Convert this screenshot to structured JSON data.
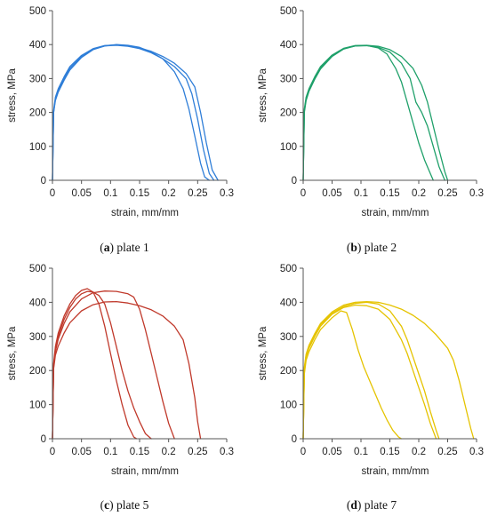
{
  "chart_data": [
    {
      "type": "line",
      "caption_letter": "a",
      "caption_text": "plate 1",
      "xlabel": "strain, mm/mm",
      "ylabel": "stress, MPa",
      "xlim": [
        0,
        0.3
      ],
      "ylim": [
        0,
        500
      ],
      "xticks": [
        "0",
        "0.05",
        "0.1",
        "0.15",
        "0.2",
        "0.25",
        "0.3"
      ],
      "yticks": [
        "0",
        "100",
        "200",
        "300",
        "400",
        "500"
      ],
      "color": "#2f7ed8",
      "series": [
        {
          "x": [
            0,
            0.002,
            0.005,
            0.01,
            0.02,
            0.03,
            0.05,
            0.07,
            0.09,
            0.11,
            0.13,
            0.15,
            0.17,
            0.19,
            0.21,
            0.225,
            0.235,
            0.245,
            0.255,
            0.262,
            0.27
          ],
          "y": [
            0,
            200,
            235,
            260,
            295,
            325,
            362,
            385,
            396,
            400,
            398,
            392,
            378,
            358,
            320,
            270,
            210,
            130,
            50,
            10,
            0
          ]
        },
        {
          "x": [
            0,
            0.002,
            0.005,
            0.01,
            0.02,
            0.03,
            0.05,
            0.07,
            0.09,
            0.11,
            0.13,
            0.15,
            0.17,
            0.19,
            0.21,
            0.23,
            0.24,
            0.25,
            0.26,
            0.27,
            0.278
          ],
          "y": [
            0,
            200,
            240,
            265,
            300,
            330,
            365,
            386,
            396,
            398,
            395,
            388,
            376,
            358,
            335,
            300,
            255,
            180,
            90,
            20,
            0
          ]
        },
        {
          "x": [
            0,
            0.002,
            0.005,
            0.01,
            0.02,
            0.03,
            0.05,
            0.07,
            0.09,
            0.11,
            0.13,
            0.15,
            0.17,
            0.19,
            0.21,
            0.23,
            0.245,
            0.255,
            0.265,
            0.275,
            0.285
          ],
          "y": [
            0,
            205,
            245,
            270,
            305,
            335,
            368,
            388,
            397,
            399,
            396,
            390,
            380,
            365,
            345,
            315,
            275,
            200,
            110,
            30,
            0
          ]
        }
      ]
    },
    {
      "type": "line",
      "caption_letter": "b",
      "caption_text": "plate 2",
      "xlabel": "strain, mm/mm",
      "ylabel": "stress, MPa",
      "xlim": [
        0,
        0.3
      ],
      "ylim": [
        0,
        500
      ],
      "xticks": [
        "0",
        "0.05",
        "0.1",
        "0.15",
        "0.2",
        "0.25",
        "0.3"
      ],
      "yticks": [
        "0",
        "100",
        "200",
        "300",
        "400",
        "500"
      ],
      "color": "#1fa06a",
      "series": [
        {
          "x": [
            0,
            0.002,
            0.005,
            0.01,
            0.02,
            0.03,
            0.05,
            0.07,
            0.09,
            0.11,
            0.13,
            0.145,
            0.16,
            0.17,
            0.18,
            0.19,
            0.2,
            0.21,
            0.22,
            0.225
          ],
          "y": [
            0,
            200,
            235,
            262,
            298,
            328,
            365,
            387,
            396,
            397,
            390,
            372,
            330,
            290,
            230,
            170,
            110,
            60,
            20,
            0
          ]
        },
        {
          "x": [
            0,
            0.002,
            0.005,
            0.01,
            0.02,
            0.03,
            0.05,
            0.07,
            0.09,
            0.11,
            0.13,
            0.15,
            0.17,
            0.185,
            0.195,
            0.205,
            0.215,
            0.225,
            0.235,
            0.245
          ],
          "y": [
            0,
            205,
            240,
            266,
            302,
            332,
            367,
            388,
            396,
            397,
            392,
            378,
            345,
            300,
            230,
            200,
            160,
            100,
            40,
            0
          ]
        },
        {
          "x": [
            0,
            0.002,
            0.005,
            0.01,
            0.02,
            0.03,
            0.05,
            0.07,
            0.09,
            0.11,
            0.13,
            0.15,
            0.17,
            0.19,
            0.205,
            0.215,
            0.225,
            0.235,
            0.245,
            0.25
          ],
          "y": [
            0,
            210,
            245,
            270,
            305,
            335,
            369,
            389,
            397,
            398,
            395,
            385,
            365,
            330,
            280,
            230,
            160,
            90,
            25,
            0
          ]
        }
      ]
    },
    {
      "type": "line",
      "caption_letter": "c",
      "caption_text": "plate 5",
      "xlabel": "strain, mm/mm",
      "ylabel": "stress, MPa",
      "xlim": [
        0,
        0.3
      ],
      "ylim": [
        0,
        500
      ],
      "xticks": [
        "0",
        "0.05",
        "0.1",
        "0.15",
        "0.2",
        "0.25",
        "0.3"
      ],
      "yticks": [
        "0",
        "100",
        "200",
        "300",
        "400",
        "500"
      ],
      "color": "#c0392b",
      "series": [
        {
          "x": [
            0,
            0.002,
            0.005,
            0.01,
            0.02,
            0.03,
            0.04,
            0.05,
            0.06,
            0.07,
            0.08,
            0.09,
            0.1,
            0.11,
            0.12,
            0.13,
            0.14,
            0.145
          ],
          "y": [
            0,
            220,
            270,
            310,
            360,
            395,
            420,
            435,
            440,
            430,
            395,
            330,
            250,
            170,
            100,
            40,
            5,
            0
          ]
        },
        {
          "x": [
            0,
            0.002,
            0.005,
            0.01,
            0.02,
            0.03,
            0.04,
            0.05,
            0.06,
            0.07,
            0.08,
            0.09,
            0.1,
            0.11,
            0.12,
            0.13,
            0.14,
            0.15,
            0.16,
            0.17
          ],
          "y": [
            0,
            215,
            262,
            300,
            350,
            385,
            410,
            425,
            432,
            430,
            420,
            395,
            340,
            270,
            200,
            140,
            90,
            50,
            15,
            0
          ]
        },
        {
          "x": [
            0,
            0.002,
            0.005,
            0.01,
            0.02,
            0.03,
            0.05,
            0.07,
            0.09,
            0.11,
            0.13,
            0.14,
            0.15,
            0.16,
            0.17,
            0.18,
            0.19,
            0.2,
            0.21
          ],
          "y": [
            0,
            210,
            255,
            292,
            338,
            372,
            410,
            428,
            433,
            432,
            425,
            415,
            380,
            320,
            250,
            180,
            110,
            45,
            0
          ]
        },
        {
          "x": [
            0,
            0.002,
            0.005,
            0.01,
            0.02,
            0.03,
            0.05,
            0.07,
            0.09,
            0.11,
            0.13,
            0.15,
            0.17,
            0.19,
            0.21,
            0.225,
            0.235,
            0.245,
            0.25,
            0.255
          ],
          "y": [
            0,
            205,
            245,
            272,
            310,
            340,
            375,
            393,
            401,
            402,
            398,
            390,
            378,
            360,
            330,
            290,
            220,
            120,
            50,
            0
          ]
        }
      ]
    },
    {
      "type": "line",
      "caption_letter": "d",
      "caption_text": "plate 7",
      "xlabel": "strain, mm/mm",
      "ylabel": "stress, MPa",
      "xlim": [
        0,
        0.3
      ],
      "ylim": [
        0,
        500
      ],
      "xticks": [
        "0",
        "0.05",
        "0.1",
        "0.15",
        "0.2",
        "0.25",
        "0.3"
      ],
      "yticks": [
        "0",
        "100",
        "200",
        "300",
        "400",
        "500"
      ],
      "color": "#e5c300",
      "series": [
        {
          "x": [
            0,
            0.002,
            0.005,
            0.01,
            0.02,
            0.03,
            0.05,
            0.065,
            0.075,
            0.085,
            0.095,
            0.105,
            0.115,
            0.125,
            0.135,
            0.145,
            0.155,
            0.165,
            0.17
          ],
          "y": [
            0,
            190,
            230,
            255,
            290,
            320,
            355,
            375,
            370,
            320,
            260,
            210,
            170,
            130,
            90,
            55,
            25,
            5,
            0
          ]
        },
        {
          "x": [
            0,
            0.002,
            0.005,
            0.01,
            0.02,
            0.03,
            0.05,
            0.07,
            0.09,
            0.11,
            0.13,
            0.15,
            0.17,
            0.18,
            0.19,
            0.2,
            0.21,
            0.22,
            0.23
          ],
          "y": [
            0,
            200,
            240,
            265,
            300,
            330,
            365,
            385,
            392,
            390,
            380,
            350,
            290,
            250,
            200,
            150,
            100,
            45,
            0
          ]
        },
        {
          "x": [
            0,
            0.002,
            0.005,
            0.01,
            0.02,
            0.03,
            0.05,
            0.07,
            0.09,
            0.11,
            0.13,
            0.15,
            0.17,
            0.18,
            0.19,
            0.2,
            0.21,
            0.22,
            0.23,
            0.235
          ],
          "y": [
            0,
            205,
            245,
            270,
            305,
            335,
            368,
            388,
            397,
            400,
            395,
            375,
            330,
            290,
            240,
            190,
            140,
            80,
            25,
            0
          ]
        },
        {
          "x": [
            0,
            0.002,
            0.005,
            0.01,
            0.02,
            0.03,
            0.05,
            0.07,
            0.09,
            0.11,
            0.13,
            0.15,
            0.17,
            0.19,
            0.21,
            0.23,
            0.25,
            0.26,
            0.27,
            0.28,
            0.29,
            0.295
          ],
          "y": [
            0,
            210,
            248,
            274,
            308,
            338,
            372,
            392,
            400,
            402,
            400,
            392,
            380,
            362,
            338,
            305,
            265,
            230,
            170,
            100,
            30,
            0
          ]
        }
      ]
    }
  ]
}
